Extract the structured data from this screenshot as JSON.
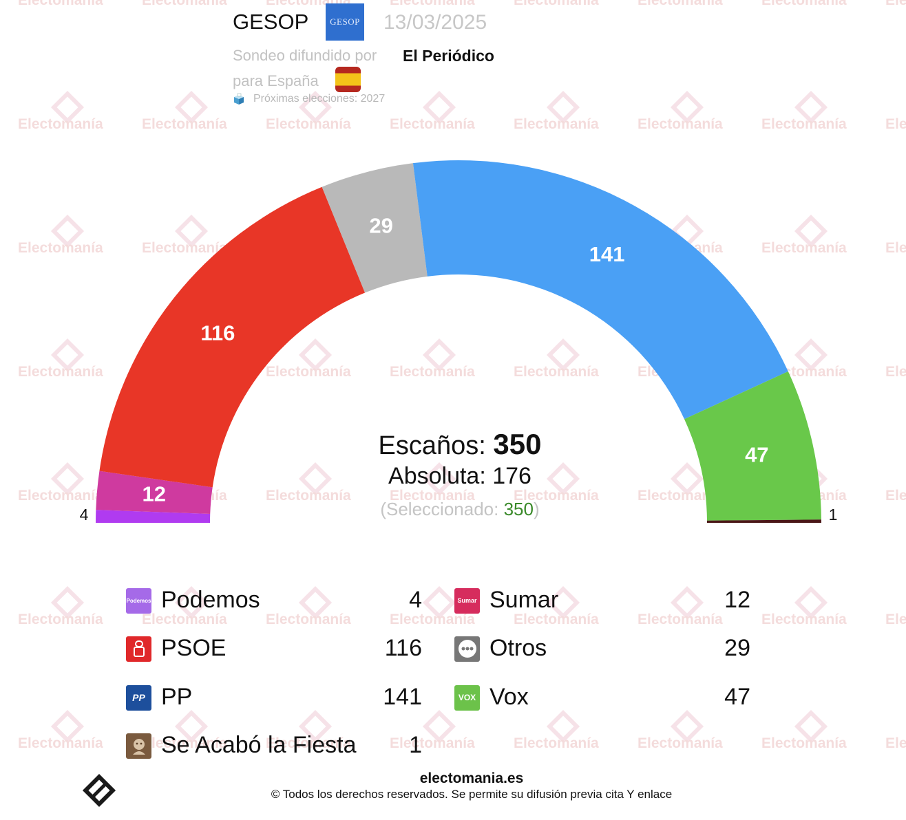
{
  "watermark_text": "Electomanía",
  "header": {
    "pollster": "GESOP",
    "pollster_logo_text": "GESOP",
    "date": "13/03/2025",
    "published_by_label": "Sondeo difundido por",
    "media": "El Periódico",
    "scope_label": "para España",
    "next_elections": "Próximas elecciones: 2027"
  },
  "center": {
    "seats_label": "Escaños:",
    "seats_total": "350",
    "majority_label": "Absoluta: 176",
    "selected_prefix": "(Seleccionado: ",
    "selected_value": "350",
    "selected_suffix": ")"
  },
  "chart_data": {
    "type": "pie",
    "subtype": "hemicycle",
    "total": 350,
    "order": [
      "Podemos",
      "Sumar",
      "PSOE",
      "Otros",
      "PP",
      "Vox",
      "Se Acabó la Fiesta"
    ],
    "series": [
      {
        "name": "Podemos",
        "value": 4,
        "color": "#b03bf0"
      },
      {
        "name": "Sumar",
        "value": 12,
        "color": "#cf3a9f"
      },
      {
        "name": "PSOE",
        "value": 116,
        "color": "#e83627"
      },
      {
        "name": "Otros",
        "value": 29,
        "color": "#b9b9b9"
      },
      {
        "name": "PP",
        "value": 141,
        "color": "#4aa0f5"
      },
      {
        "name": "Vox",
        "value": 47,
        "color": "#69c84a"
      },
      {
        "name": "Se Acabó la Fiesta",
        "value": 1,
        "color": "#4a1717"
      }
    ]
  },
  "legend": [
    {
      "name": "Podemos",
      "value": "4",
      "icon": "podemos-logo",
      "icon_text": "Podemos",
      "color": "#a56ae8"
    },
    {
      "name": "Sumar",
      "value": "12",
      "icon": "sumar-logo",
      "icon_text": "Sumar",
      "color": "#d62c5d"
    },
    {
      "name": "PSOE",
      "value": "116",
      "icon": "psoe-logo",
      "icon_text": "",
      "color": "#e0282a"
    },
    {
      "name": "Otros",
      "value": "29",
      "icon": "ellipsis-icon",
      "icon_text": "•••",
      "color": "#777777"
    },
    {
      "name": "PP",
      "value": "141",
      "icon": "pp-logo",
      "icon_text": "PP",
      "color": "#1d4f9c"
    },
    {
      "name": "Vox",
      "value": "47",
      "icon": "vox-logo",
      "icon_text": "VOX",
      "color": "#6cc24a"
    },
    {
      "name": "Se Acabó la Fiesta",
      "value": "1",
      "icon": "salf-logo",
      "icon_text": "",
      "color": "#7a5a3e"
    }
  ],
  "footer": {
    "site": "electomania.es",
    "copyright": "© Todos los derechos reservados. Se permite su difusión previa cita Y enlace"
  }
}
